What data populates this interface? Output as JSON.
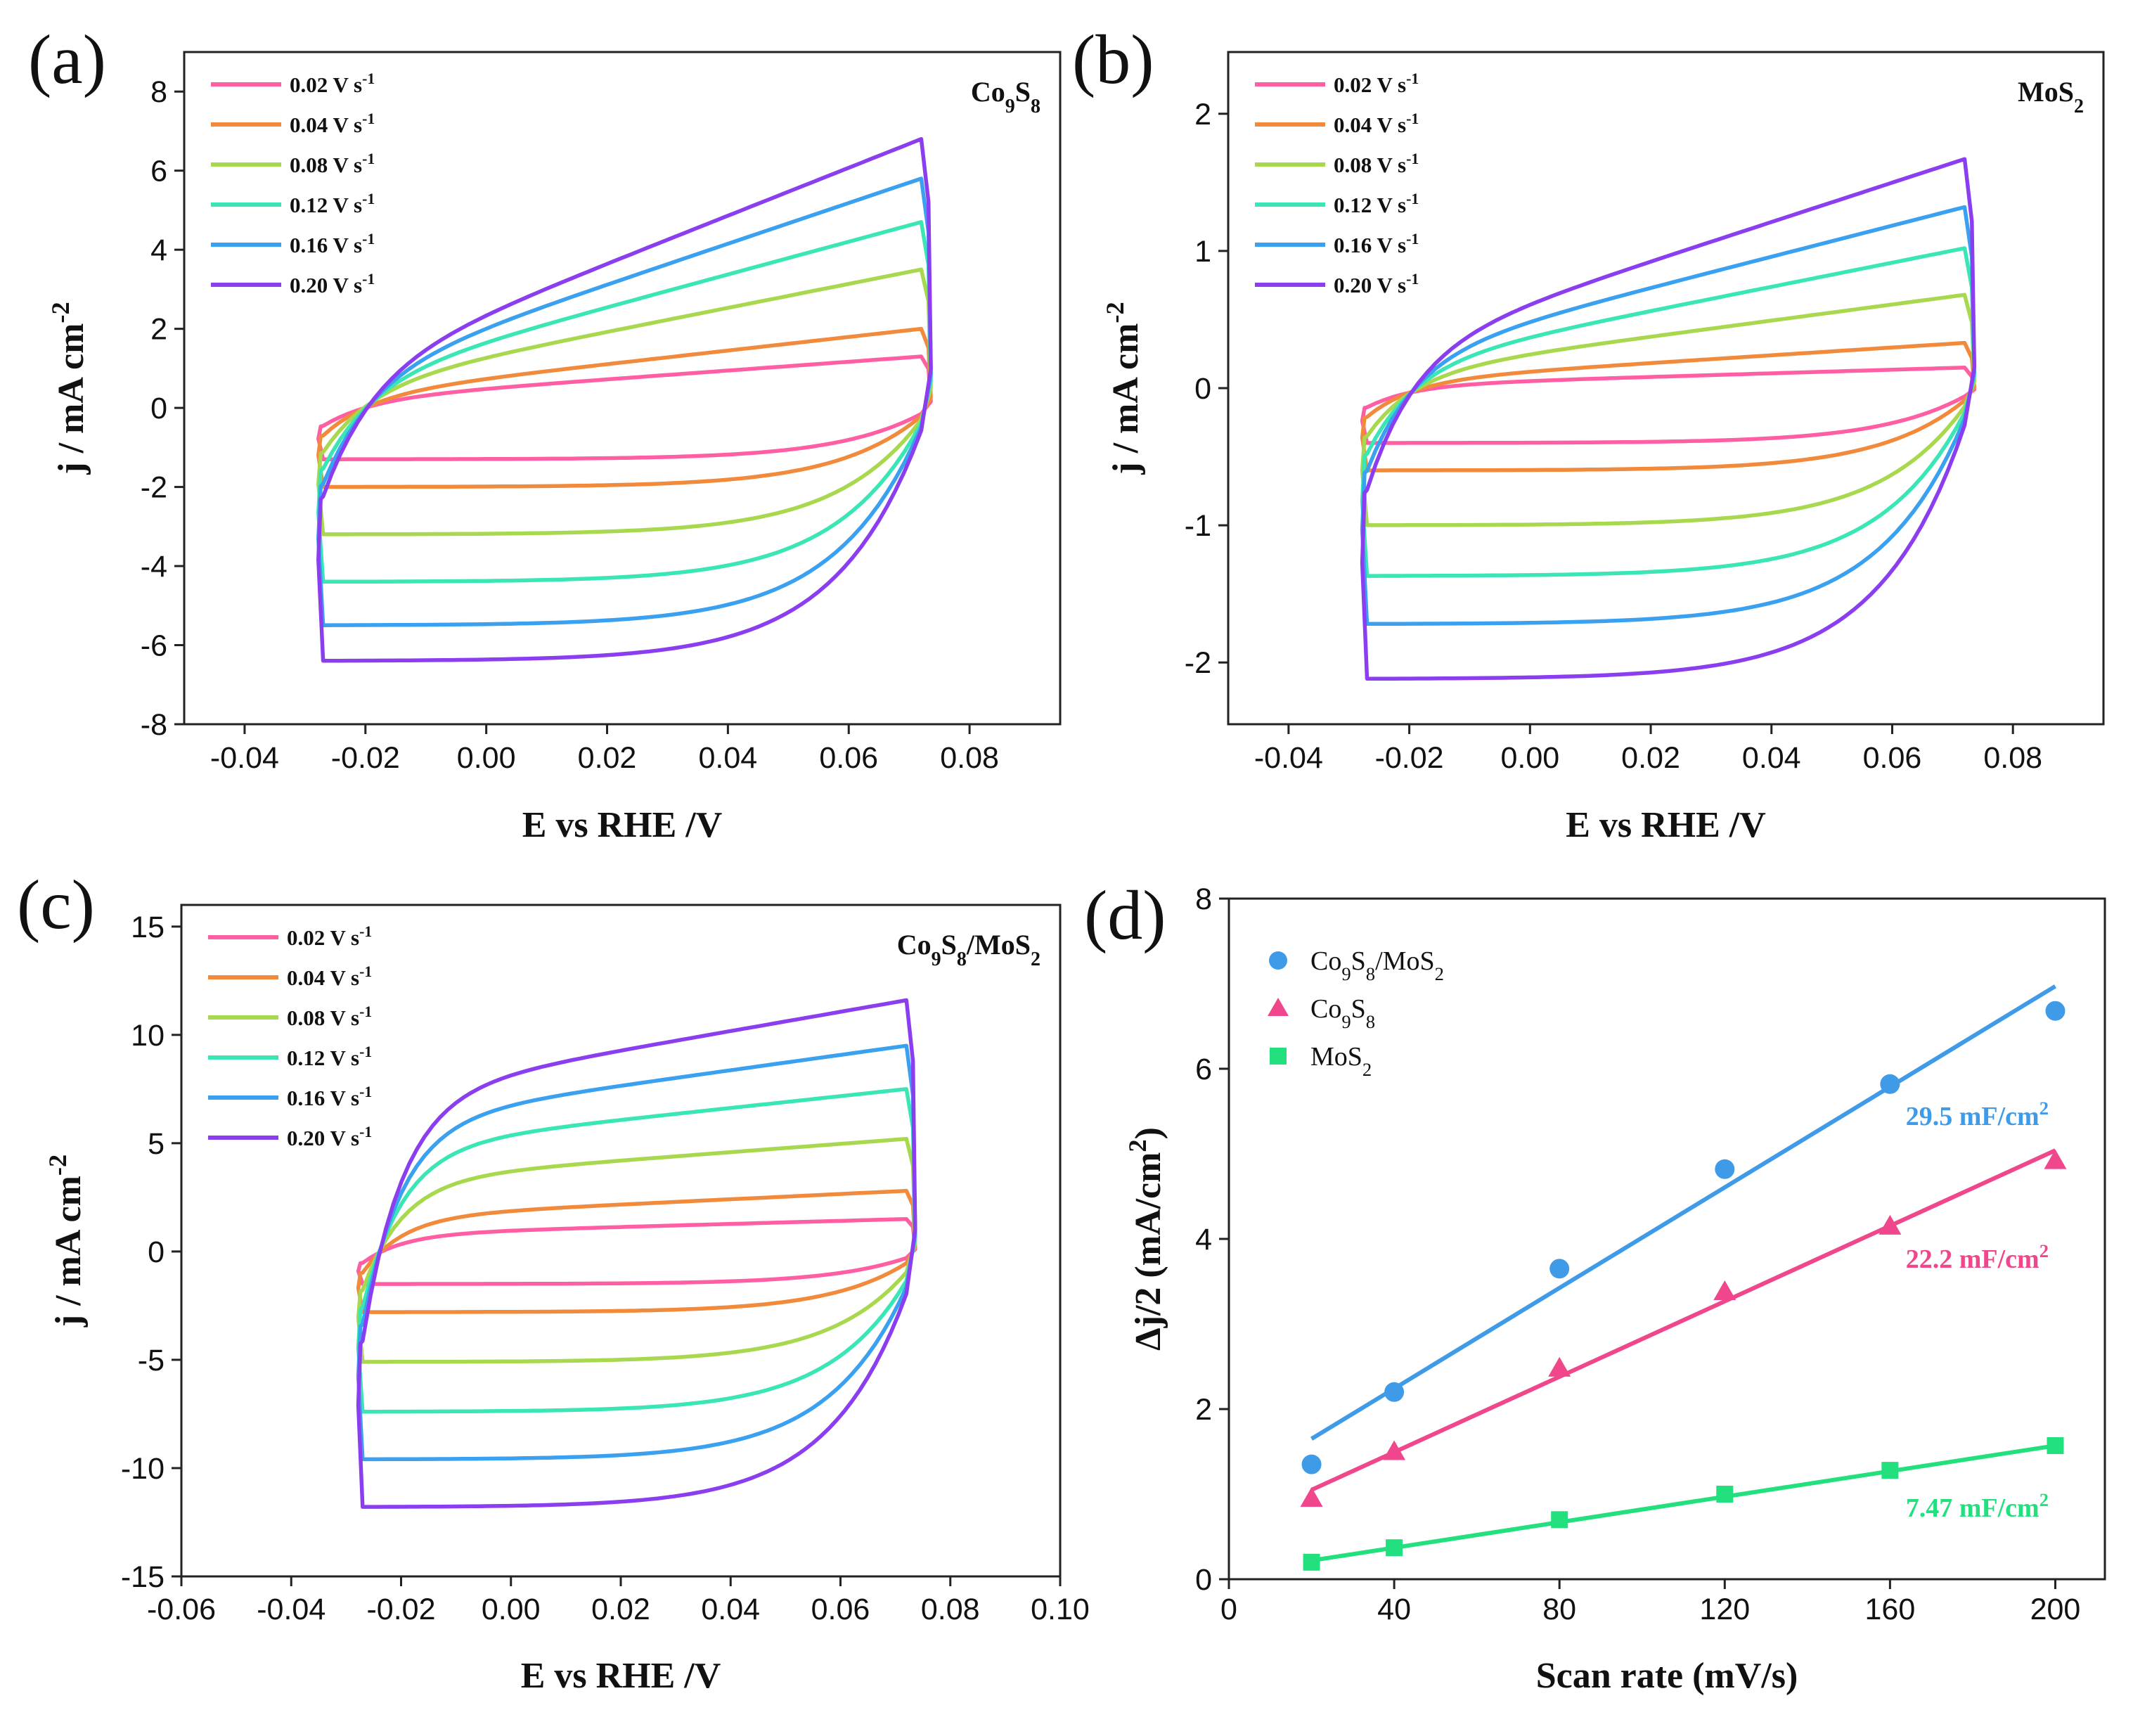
{
  "chart_data": [
    {
      "panel": "(a)",
      "type": "line",
      "sample_label": "Co9S8",
      "sample_label_parts": {
        "base1": "Co",
        "sub1": "9",
        "base2": "S",
        "sub2": "8",
        "base3": "",
        "sub3": ""
      },
      "xlabel": "E vs RHE /V",
      "ylabel": "j / mA cm",
      "ylabel_sup": "-2",
      "xlim": [
        -0.05,
        0.095
      ],
      "ylim": [
        -8,
        9
      ],
      "xticks": [
        -0.04,
        -0.02,
        0.0,
        0.02,
        0.04,
        0.06,
        0.08
      ],
      "xtick_labels": [
        "-0.04",
        "-0.02",
        "0.00",
        "0.02",
        "0.04",
        "0.06",
        "0.08"
      ],
      "yticks": [
        -8,
        -6,
        -4,
        -2,
        0,
        2,
        4,
        6,
        8
      ],
      "ytick_labels": [
        "-8",
        "-6",
        "-4",
        "-2",
        "0",
        "2",
        "4",
        "6",
        "8"
      ],
      "legend_position": "top-left",
      "series": [
        {
          "name": "0.02 V s",
          "name_sup": "-1",
          "color": "#ff5fa2",
          "anodic_start": 0.2,
          "anodic_end": 1.3,
          "cathodic_start": -1.3,
          "cathodic_end": -0.5
        },
        {
          "name": "0.04 V s",
          "name_sup": "-1",
          "color": "#f28a3c",
          "anodic_start": 0.3,
          "anodic_end": 2.0,
          "cathodic_start": -2.0,
          "cathodic_end": -0.7
        },
        {
          "name": "0.08 V s",
          "name_sup": "-1",
          "color": "#a8d84e",
          "anodic_start": 0.5,
          "anodic_end": 3.5,
          "cathodic_start": -3.2,
          "cathodic_end": -1.0
        },
        {
          "name": "0.12 V s",
          "name_sup": "-1",
          "color": "#3ae6b5",
          "anodic_start": 0.6,
          "anodic_end": 4.7,
          "cathodic_start": -4.4,
          "cathodic_end": -1.3
        },
        {
          "name": "0.16 V s",
          "name_sup": "-1",
          "color": "#3aa0f0",
          "anodic_start": 0.7,
          "anodic_end": 5.8,
          "cathodic_start": -5.5,
          "cathodic_end": -1.6
        },
        {
          "name": "0.20 V s",
          "name_sup": "-1",
          "color": "#8a3ef0",
          "anodic_start": 0.8,
          "anodic_end": 6.8,
          "cathodic_start": -6.4,
          "cathodic_end": -1.9
        }
      ]
    },
    {
      "panel": "(b)",
      "type": "line",
      "sample_label": "MoS2",
      "sample_label_parts": {
        "base1": "MoS",
        "sub1": "2",
        "base2": "",
        "sub2": "",
        "base3": "",
        "sub3": ""
      },
      "xlabel": "E vs RHE /V",
      "ylabel": "j / mA cm",
      "ylabel_sup": "-2",
      "xlim": [
        -0.05,
        0.095
      ],
      "ylim": [
        -2.45,
        2.45
      ],
      "xticks": [
        -0.04,
        -0.02,
        0.0,
        0.02,
        0.04,
        0.06,
        0.08
      ],
      "xtick_labels": [
        "-0.04",
        "-0.02",
        "0.00",
        "0.02",
        "0.04",
        "0.06",
        "0.08"
      ],
      "yticks": [
        -2,
        -1,
        0,
        1,
        2
      ],
      "ytick_labels": [
        "-2",
        "-1",
        "0",
        "1",
        "2"
      ],
      "legend_position": "top-left",
      "series": [
        {
          "name": "0.02 V s",
          "name_sup": "-1",
          "color": "#ff5fa2",
          "anodic_start": 0.02,
          "anodic_end": 0.15,
          "cathodic_start": -0.4,
          "cathodic_end": -0.2
        },
        {
          "name": "0.04 V s",
          "name_sup": "-1",
          "color": "#f28a3c",
          "anodic_start": 0.05,
          "anodic_end": 0.33,
          "cathodic_start": -0.6,
          "cathodic_end": -0.3
        },
        {
          "name": "0.08 V s",
          "name_sup": "-1",
          "color": "#a8d84e",
          "anodic_start": 0.1,
          "anodic_end": 0.68,
          "cathodic_start": -1.0,
          "cathodic_end": -0.45
        },
        {
          "name": "0.12 V s",
          "name_sup": "-1",
          "color": "#3ae6b5",
          "anodic_start": 0.15,
          "anodic_end": 1.02,
          "cathodic_start": -1.37,
          "cathodic_end": -0.6
        },
        {
          "name": "0.16 V s",
          "name_sup": "-1",
          "color": "#3aa0f0",
          "anodic_start": 0.2,
          "anodic_end": 1.32,
          "cathodic_start": -1.72,
          "cathodic_end": -0.75
        },
        {
          "name": "0.20 V s",
          "name_sup": "-1",
          "color": "#8a3ef0",
          "anodic_start": 0.25,
          "anodic_end": 1.67,
          "cathodic_start": -2.12,
          "cathodic_end": -0.9
        }
      ]
    },
    {
      "panel": "(c)",
      "type": "line",
      "sample_label": "Co9S8/MoS2",
      "sample_label_parts": {
        "base1": "Co",
        "sub1": "9",
        "base2": "S",
        "sub2": "8",
        "base3": "/MoS",
        "sub3": "2"
      },
      "xlabel": "E vs RHE /V",
      "ylabel": "j / mA cm",
      "ylabel_sup": "-2",
      "xlim": [
        -0.06,
        0.1
      ],
      "ylim": [
        -15,
        16
      ],
      "xticks": [
        -0.06,
        -0.04,
        -0.02,
        0.0,
        0.02,
        0.04,
        0.06,
        0.08,
        0.1
      ],
      "xtick_labels": [
        "-0.06",
        "-0.04",
        "-0.02",
        "0.00",
        "0.02",
        "0.04",
        "0.06",
        "0.08",
        "0.10"
      ],
      "yticks": [
        -15,
        -10,
        -5,
        0,
        5,
        10,
        15
      ],
      "ytick_labels": [
        "-15",
        "-10",
        "-5",
        "0",
        "5",
        "10",
        "15"
      ],
      "legend_position": "top-left",
      "series": [
        {
          "name": "0.02 V s",
          "name_sup": "-1",
          "color": "#ff5fa2",
          "anodic_start": 0.8,
          "anodic_end": 1.5,
          "cathodic_start": -1.5,
          "cathodic_end": -1.0
        },
        {
          "name": "0.04 V s",
          "name_sup": "-1",
          "color": "#f28a3c",
          "anodic_start": 1.6,
          "anodic_end": 2.8,
          "cathodic_start": -2.8,
          "cathodic_end": -1.8
        },
        {
          "name": "0.08 V s",
          "name_sup": "-1",
          "color": "#a8d84e",
          "anodic_start": 3.3,
          "anodic_end": 5.2,
          "cathodic_start": -5.1,
          "cathodic_end": -3.2
        },
        {
          "name": "0.12 V s",
          "name_sup": "-1",
          "color": "#3ae6b5",
          "anodic_start": 4.8,
          "anodic_end": 7.5,
          "cathodic_start": -7.4,
          "cathodic_end": -4.5
        },
        {
          "name": "0.16 V s",
          "name_sup": "-1",
          "color": "#3aa0f0",
          "anodic_start": 6.0,
          "anodic_end": 9.5,
          "cathodic_start": -9.6,
          "cathodic_end": -5.5
        },
        {
          "name": "0.20 V s",
          "name_sup": "-1",
          "color": "#8a3ef0",
          "anodic_start": 7.2,
          "anodic_end": 11.6,
          "cathodic_start": -11.8,
          "cathodic_end": -6.5
        }
      ]
    },
    {
      "panel": "(d)",
      "type": "scatter",
      "xlabel": "Scan rate (mV/s)",
      "ylabel": "Δj/2 (mA/cm",
      "ylabel_sup": "2",
      "ylabel_end": ")",
      "xlim": [
        0,
        212
      ],
      "ylim": [
        0,
        8
      ],
      "xticks": [
        0,
        40,
        80,
        120,
        160,
        200
      ],
      "xtick_labels": [
        "0",
        "40",
        "80",
        "120",
        "160",
        "200"
      ],
      "yticks": [
        0,
        2,
        4,
        6,
        8
      ],
      "ytick_labels": [
        "0",
        "2",
        "4",
        "6",
        "8"
      ],
      "legend_position": "top-left",
      "x": [
        20,
        40,
        80,
        120,
        160,
        200
      ],
      "series": [
        {
          "name": "Co9S8/MoS2",
          "name_parts": {
            "base1": "Co",
            "sub1": "9",
            "base2": "S",
            "sub2": "8",
            "base3": "/MoS",
            "sub3": "2"
          },
          "marker": "circle",
          "color": "#3f9be8",
          "values": [
            1.35,
            2.2,
            3.65,
            4.82,
            5.82,
            6.68
          ],
          "fit_y": [
            1.65,
            6.97
          ],
          "capacitance": "29.5 mF/cm",
          "capacitance_sup": "2"
        },
        {
          "name": "Co9S8",
          "name_parts": {
            "base1": "Co",
            "sub1": "9",
            "base2": "S",
            "sub2": "8",
            "base3": "",
            "sub3": ""
          },
          "marker": "triangle",
          "color": "#f0468c",
          "values": [
            0.95,
            1.5,
            2.48,
            3.38,
            4.15,
            4.92
          ],
          "fit_y": [
            1.05,
            5.04
          ],
          "capacitance": "22.2 mF/cm",
          "capacitance_sup": "2"
        },
        {
          "name": "MoS2",
          "name_parts": {
            "base1": "MoS",
            "sub1": "2",
            "base2": "",
            "sub2": "",
            "base3": "",
            "sub3": ""
          },
          "marker": "square",
          "color": "#22e07e",
          "values": [
            0.2,
            0.37,
            0.7,
            1.0,
            1.28,
            1.57
          ],
          "fit_y": [
            0.22,
            1.57
          ],
          "capacitance": "7.47 mF/cm",
          "capacitance_sup": "2"
        }
      ]
    }
  ]
}
